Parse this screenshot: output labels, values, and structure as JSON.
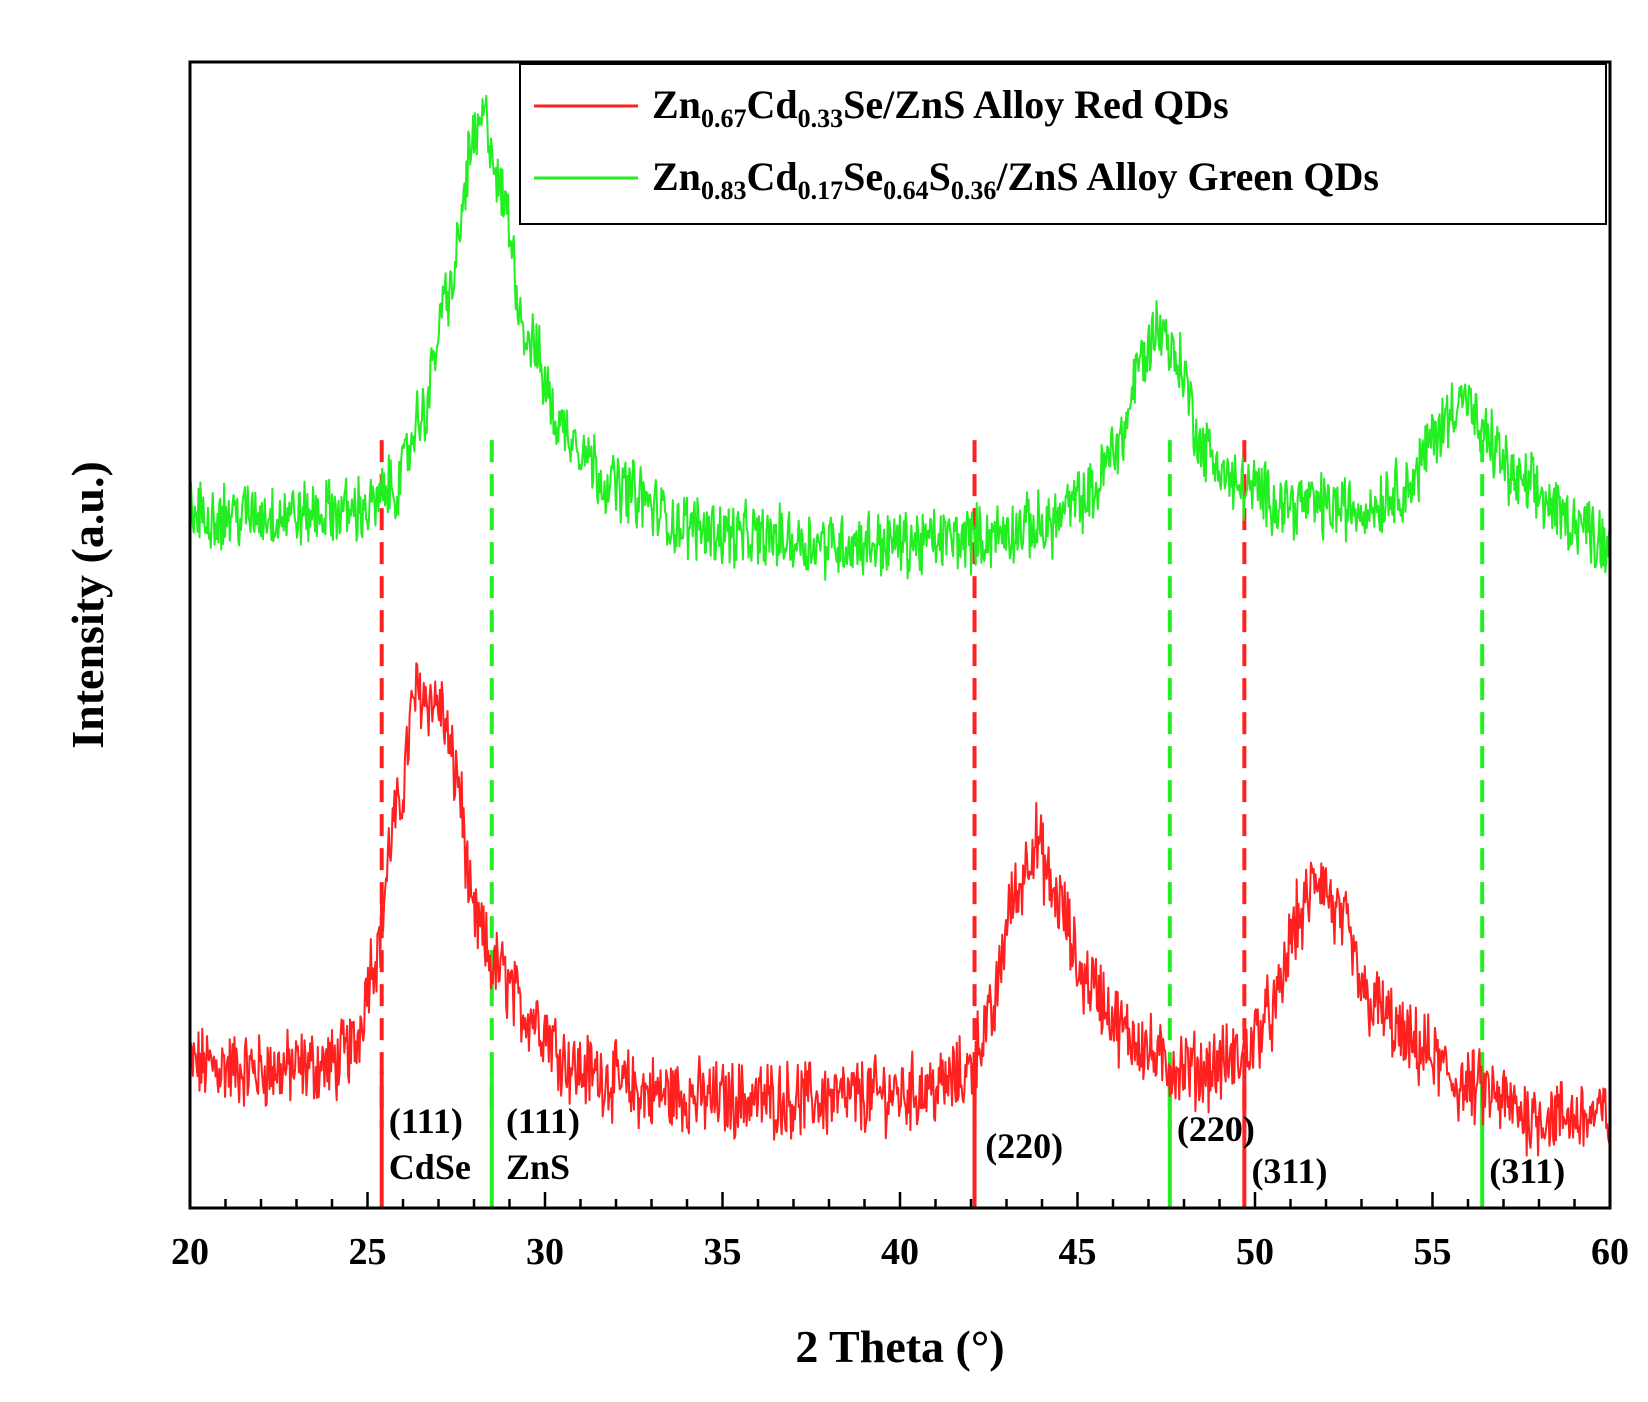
{
  "chart_data": {
    "type": "line",
    "title": "",
    "xlabel": "2 Theta (°)",
    "ylabel": "Intensity (a.u.)",
    "xlim": [
      20,
      60
    ],
    "ylim": [
      0,
      100
    ],
    "x_ticks": [
      "20",
      "25",
      "30",
      "35",
      "40",
      "45",
      "50",
      "55",
      "60"
    ],
    "legend_position": "top-right",
    "series": [
      {
        "name": "Zn0.67Cd0.33Se/ZnS Alloy Red QDs",
        "legend_parts": [
          {
            "t": "Zn"
          },
          {
            "t": "0.67",
            "sub": true
          },
          {
            "t": "Cd"
          },
          {
            "t": "0.33",
            "sub": true
          },
          {
            "t": "Se/ZnS Alloy Red QDs"
          }
        ],
        "color": "#ff2020",
        "noise": 2.8,
        "points": [
          [
            20,
            12.5
          ],
          [
            22,
            12
          ],
          [
            24,
            12.5
          ],
          [
            24.6,
            14
          ],
          [
            25.2,
            22
          ],
          [
            25.8,
            34
          ],
          [
            26.4,
            45
          ],
          [
            27,
            44
          ],
          [
            27.5,
            38
          ],
          [
            28,
            25
          ],
          [
            28.6,
            21
          ],
          [
            29.5,
            17
          ],
          [
            31,
            12
          ],
          [
            33,
            10
          ],
          [
            35,
            9.5
          ],
          [
            38,
            9.5
          ],
          [
            40,
            10
          ],
          [
            41,
            10.5
          ],
          [
            41.8,
            11.5
          ],
          [
            42.5,
            16
          ],
          [
            43.2,
            27
          ],
          [
            43.8,
            32
          ],
          [
            44.4,
            27
          ],
          [
            45.2,
            20
          ],
          [
            46.5,
            15
          ],
          [
            47.5,
            12.5
          ],
          [
            48.5,
            12
          ],
          [
            49.5,
            13
          ],
          [
            50.5,
            17
          ],
          [
            51.2,
            25
          ],
          [
            51.8,
            29
          ],
          [
            52.4,
            25
          ],
          [
            53.2,
            18
          ],
          [
            54.5,
            14
          ],
          [
            56,
            10.5
          ],
          [
            58,
            8
          ],
          [
            60,
            8
          ]
        ]
      },
      {
        "name": "Zn0.83Cd0.17Se0.64S0.36/ZnS Alloy Green QDs",
        "legend_parts": [
          {
            "t": "Zn"
          },
          {
            "t": "0.83",
            "sub": true
          },
          {
            "t": "Cd"
          },
          {
            "t": "0.17",
            "sub": true
          },
          {
            "t": "Se"
          },
          {
            "t": "0.64",
            "sub": true
          },
          {
            "t": "S"
          },
          {
            "t": "0.36",
            "sub": true
          },
          {
            "t": "/ZnS Alloy Green QDs"
          }
        ],
        "color": "#22ee22",
        "noise": 2.4,
        "points": [
          [
            20,
            60.5
          ],
          [
            23,
            60.5
          ],
          [
            25,
            61
          ],
          [
            25.8,
            63
          ],
          [
            26.5,
            69
          ],
          [
            27.3,
            80
          ],
          [
            28,
            93
          ],
          [
            28.3,
            95
          ],
          [
            28.8,
            88
          ],
          [
            29.5,
            76
          ],
          [
            30.5,
            68
          ],
          [
            32,
            63
          ],
          [
            34,
            59.5
          ],
          [
            36,
            58.5
          ],
          [
            38,
            58
          ],
          [
            40,
            58
          ],
          [
            42,
            58.5
          ],
          [
            44,
            59.5
          ],
          [
            45.3,
            62
          ],
          [
            46.2,
            67
          ],
          [
            46.8,
            74
          ],
          [
            47.3,
            77
          ],
          [
            47.8,
            74
          ],
          [
            48.6,
            66
          ],
          [
            49.5,
            63
          ],
          [
            51,
            61.5
          ],
          [
            53,
            61
          ],
          [
            54.3,
            63
          ],
          [
            55.2,
            68
          ],
          [
            55.8,
            71
          ],
          [
            56.5,
            67
          ],
          [
            57.5,
            63
          ],
          [
            59,
            60
          ],
          [
            60,
            58
          ]
        ]
      }
    ],
    "reference_lines": [
      {
        "x": 25.4,
        "color": "#ff2020"
      },
      {
        "x": 28.5,
        "color": "#22ee22"
      },
      {
        "x": 42.1,
        "color": "#ff2020"
      },
      {
        "x": 47.6,
        "color": "#22ee22"
      },
      {
        "x": 49.7,
        "color": "#ff2020"
      },
      {
        "x": 56.4,
        "color": "#22ee22"
      }
    ],
    "annotations": [
      {
        "x": 25.6,
        "label_lines": [
          "(111)",
          "CdSe"
        ]
      },
      {
        "x": 28.9,
        "label_lines": [
          "(111)",
          "ZnS"
        ]
      },
      {
        "x": 42.4,
        "label_lines": [
          "(220)"
        ]
      },
      {
        "x": 47.8,
        "label_lines": [
          "(220)"
        ]
      },
      {
        "x": 49.9,
        "label_lines": [
          "(311)"
        ]
      },
      {
        "x": 56.6,
        "label_lines": [
          "(311)"
        ]
      }
    ]
  }
}
